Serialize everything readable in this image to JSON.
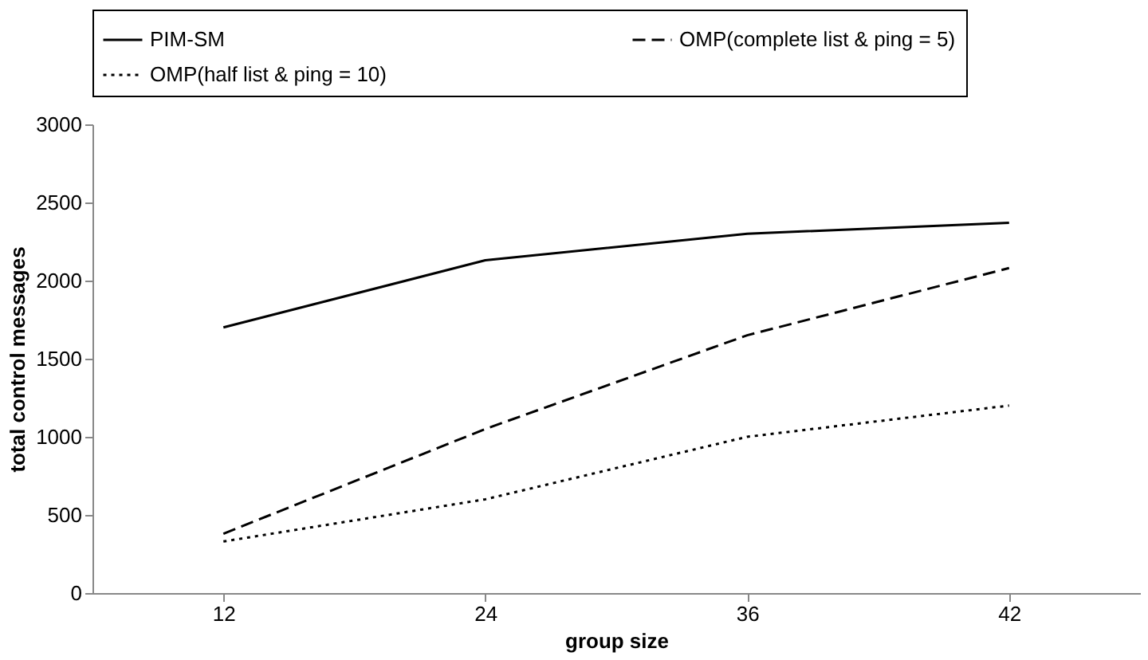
{
  "chart_data": {
    "type": "line",
    "xlabel": "group size",
    "ylabel": "total control messages",
    "categories": [
      "12",
      "24",
      "36",
      "42"
    ],
    "series": [
      {
        "name": "PIM-SM",
        "color": "#000000",
        "line_style": "solid",
        "values": [
          1700,
          2130,
          2300,
          2370
        ]
      },
      {
        "name": "OMP(complete list & ping = 5)",
        "color": "#000000",
        "line_style": "dashed",
        "values": [
          380,
          1050,
          1650,
          2080
        ]
      },
      {
        "name": "OMP(half list & ping = 10)",
        "color": "#000000",
        "line_style": "dotted",
        "values": [
          330,
          600,
          1000,
          1200
        ]
      }
    ],
    "ylim": [
      0,
      3000
    ],
    "yticks": [
      0,
      500,
      1000,
      1500,
      2000,
      2500,
      3000
    ],
    "grid": false,
    "legend": "top",
    "marker": "none"
  }
}
